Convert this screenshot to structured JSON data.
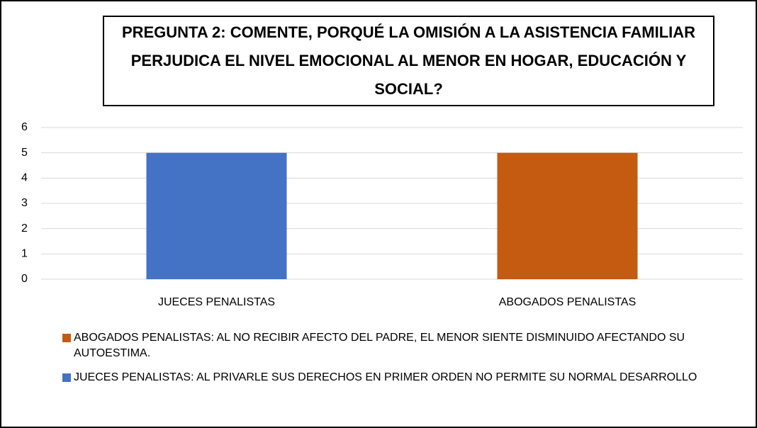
{
  "chart_data": {
    "type": "bar",
    "title": "PREGUNTA 2: COMENTE, PORQUÉ LA OMISIÓN A LA ASISTENCIA FAMILIAR PERJUDICA EL NIVEL EMOCIONAL AL MENOR EN HOGAR, EDUCACIÓN Y SOCIAL?",
    "categories": [
      "JUECES PENALISTAS",
      "ABOGADOS PENALISTAS"
    ],
    "series": [
      {
        "name": "JUECES PENALISTAS: AL PRIVARLE SUS DERECHOS EN PRIMER ORDEN NO PERMITE SU NORMAL DESARROLLO",
        "color": "#4472c4",
        "values": [
          5,
          null
        ]
      },
      {
        "name": "ABOGADOS PENALISTAS: AL NO RECIBIR AFECTO DEL PADRE, EL MENOR SIENTE DISMINUIDO AFECTANDO SU AUTOESTIMA.",
        "color": "#c55a11",
        "values": [
          null,
          5
        ]
      }
    ],
    "ylim": [
      0,
      6
    ],
    "yticks": [
      0,
      1,
      2,
      3,
      4,
      5,
      6
    ],
    "grid": true,
    "legend": "bottom"
  }
}
